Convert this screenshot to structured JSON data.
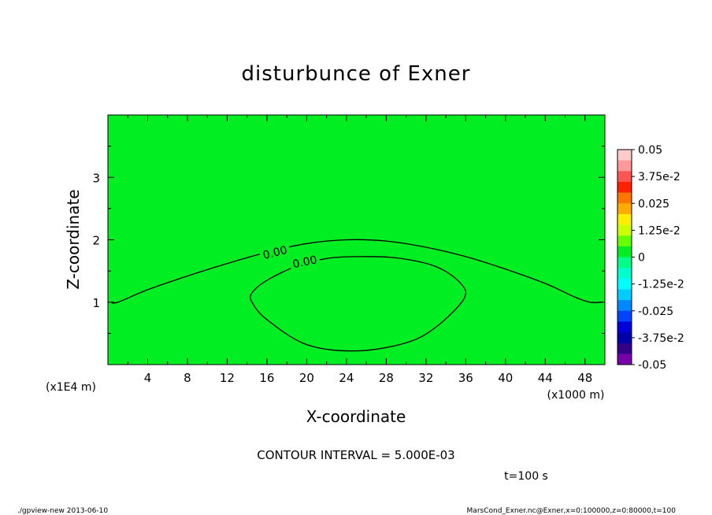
{
  "chart_data": {
    "type": "heatmap",
    "title": "disturbunce of Exner",
    "xlabel": "X-coordinate",
    "ylabel": "Z-coordinate",
    "xlim": [
      0,
      50
    ],
    "ylim": [
      0,
      4
    ],
    "x_ticks": [
      "4",
      "8",
      "12",
      "16",
      "20",
      "24",
      "28",
      "32",
      "36",
      "40",
      "44",
      "48"
    ],
    "y_ticks": [
      "1",
      "2",
      "3"
    ],
    "x_scale_label": "(x1000 m)",
    "y_scale_label": "(x1E4 m)",
    "contour_interval_text": "CONTOUR INTERVAL = 5.000E-03",
    "time_text": "t=100 s",
    "footer_left": "./gpview-new  2013-06-10",
    "footer_right": "MarsCond_Exner.nc@Exner,x=0:100000,z=0:80000,t=100",
    "fill_value": 0,
    "fill_color": "#00ee22",
    "contours": [
      {
        "label": "0.00",
        "points": [
          [
            0.3,
            1.0
          ],
          [
            1,
            1.0
          ],
          [
            4,
            1.2
          ],
          [
            8,
            1.42
          ],
          [
            12,
            1.62
          ],
          [
            16,
            1.8
          ],
          [
            20,
            1.94
          ],
          [
            24,
            2.0
          ],
          [
            28,
            1.98
          ],
          [
            32,
            1.88
          ],
          [
            36,
            1.73
          ],
          [
            40,
            1.53
          ],
          [
            44,
            1.3
          ],
          [
            47,
            1.08
          ],
          [
            48.5,
            1.0
          ],
          [
            49.7,
            1.0
          ]
        ]
      },
      {
        "label": "0.00",
        "closed": true,
        "points": [
          [
            14.5,
            1.15
          ],
          [
            16,
            1.35
          ],
          [
            19,
            1.58
          ],
          [
            22,
            1.7
          ],
          [
            25,
            1.73
          ],
          [
            29,
            1.71
          ],
          [
            33,
            1.57
          ],
          [
            35.5,
            1.3
          ],
          [
            35.8,
            1.05
          ],
          [
            33,
            0.6
          ],
          [
            30,
            0.35
          ],
          [
            25,
            0.22
          ],
          [
            20,
            0.32
          ],
          [
            16,
            0.72
          ],
          [
            14.5,
            1.0
          ]
        ]
      }
    ],
    "colorbar": {
      "labels": [
        "0.05",
        "3.75e-2",
        "0.025",
        "1.25e-2",
        "0",
        "-1.25e-2",
        "-0.025",
        "-3.75e-2",
        "-0.05"
      ],
      "colors_top_to_bottom": [
        "#ffcccc",
        "#ff9999",
        "#ff5555",
        "#ff2200",
        "#ff7700",
        "#ffaa00",
        "#ffee00",
        "#ccff00",
        "#66ff00",
        "#00ee22",
        "#00ff88",
        "#00ffcc",
        "#00ffff",
        "#00ccff",
        "#0088ff",
        "#0044ff",
        "#0000dd",
        "#0000aa",
        "#330088",
        "#7700aa"
      ]
    }
  }
}
